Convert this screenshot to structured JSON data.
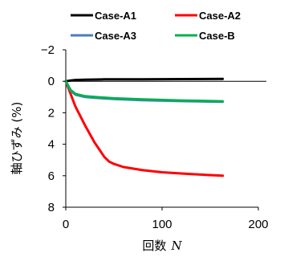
{
  "chart_data": {
    "type": "line",
    "title": "",
    "xlabel": "回数",
    "xlabel_var": "N",
    "ylabel": "軸ひずみ (%)",
    "xlim": [
      0,
      200
    ],
    "ylim": [
      -2,
      8
    ],
    "y_inverted": true,
    "x_ticks": [
      0,
      100,
      200
    ],
    "y_ticks": [
      -2,
      0,
      2,
      4,
      6,
      8
    ],
    "x_tick_labels": [
      "0",
      "100",
      "200"
    ],
    "y_tick_labels": [
      "−2",
      "0",
      "2",
      "4",
      "6",
      "8"
    ],
    "zero_line": true,
    "grid": false,
    "legend_position": "top",
    "series": [
      {
        "name": "Case-A1",
        "color": "#000000",
        "x": [
          0,
          5,
          10,
          20,
          40,
          80,
          120,
          163
        ],
        "y": [
          0,
          -0.05,
          -0.08,
          -0.1,
          -0.12,
          -0.13,
          -0.14,
          -0.15
        ]
      },
      {
        "name": "Case-A2",
        "color": "#ff0000",
        "x": [
          0,
          5,
          10,
          20,
          30,
          40,
          45,
          50,
          60,
          80,
          100,
          130,
          163
        ],
        "y": [
          0,
          0.8,
          1.6,
          2.8,
          3.9,
          4.8,
          5.1,
          5.25,
          5.45,
          5.65,
          5.78,
          5.9,
          6.0
        ]
      },
      {
        "name": "Case-A3",
        "color": "#4a7ebb",
        "x": [
          0,
          5,
          10,
          20,
          30,
          50,
          80,
          120,
          163
        ],
        "y": [
          0,
          0.6,
          0.85,
          1.0,
          1.05,
          1.12,
          1.2,
          1.26,
          1.3
        ]
      },
      {
        "name": "Case-B",
        "color": "#00b050",
        "x": [
          0,
          5,
          10,
          20,
          30,
          50,
          80,
          120,
          163
        ],
        "y": [
          0,
          0.55,
          0.8,
          0.95,
          1.0,
          1.08,
          1.15,
          1.22,
          1.27
        ]
      }
    ]
  }
}
